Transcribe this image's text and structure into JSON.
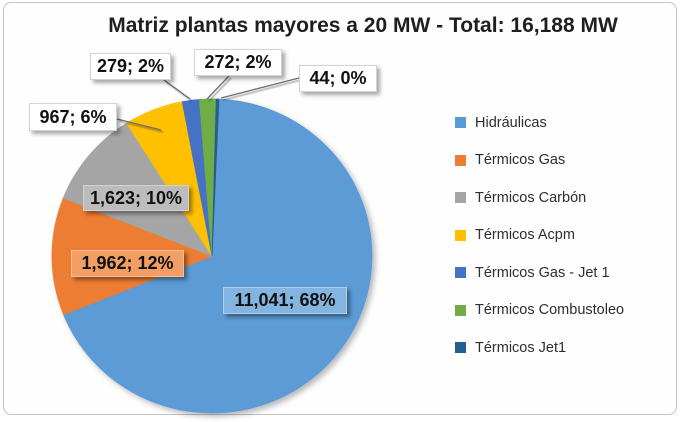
{
  "chart_data": {
    "type": "pie",
    "title": "Matriz plantas mayores a 20 MW - Total: 16,188 MW",
    "total_mw": 16188,
    "total_label": "16,188 MW",
    "unit": "MW",
    "legend_position": "right",
    "grid": false,
    "rotation_deg": 2.5,
    "series": [
      {
        "name": "Hidráulicas",
        "value": 11041,
        "percent": 68,
        "label": "11,041; 68%",
        "color": "#5B9BD5"
      },
      {
        "name": "Térmicos Gas",
        "value": 1962,
        "percent": 12,
        "label": "1,962; 12%",
        "color": "#ED7D31"
      },
      {
        "name": "Térmicos Carbón",
        "value": 1623,
        "percent": 10,
        "label": "1,623; 10%",
        "color": "#A5A5A5"
      },
      {
        "name": "Térmicos Acpm",
        "value": 967,
        "percent": 6,
        "label": "967; 6%",
        "color": "#FFC000"
      },
      {
        "name": "Térmicos Gas - Jet 1",
        "value": 279,
        "percent": 2,
        "label": "279; 2%",
        "color": "#4472C4"
      },
      {
        "name": "Térmicos Combustoleo",
        "value": 272,
        "percent": 2,
        "label": "272; 2%",
        "color": "#70AD47"
      },
      {
        "name": "Térmicos Jet1",
        "value": 44,
        "percent": 0,
        "label": "44; 0%",
        "color": "#255E91"
      }
    ]
  }
}
